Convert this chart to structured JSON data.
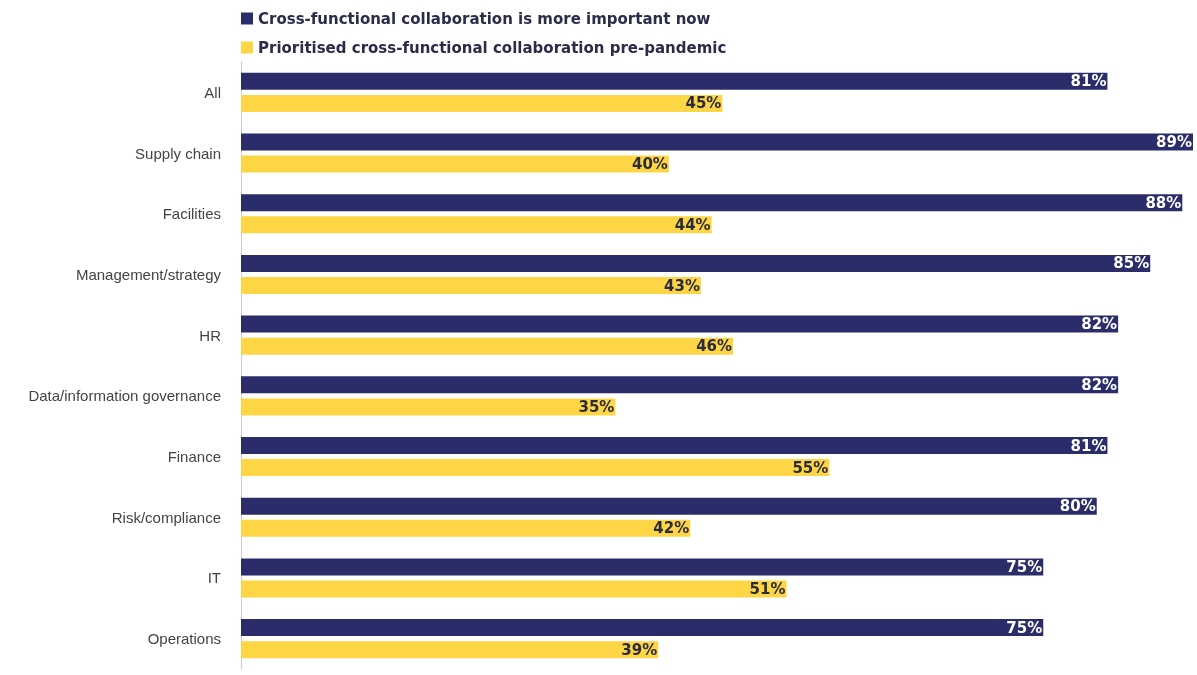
{
  "chart_data": {
    "type": "bar",
    "orientation": "horizontal",
    "legend": "top",
    "categories": [
      "All",
      "Supply chain",
      "Facilities",
      "Management/strategy",
      "HR",
      "Data/information governance",
      "Finance",
      "Risk/compliance",
      "IT",
      "Operations"
    ],
    "series": [
      {
        "name": "Cross-functional collaboration is more important now",
        "color": "#2b2c6a",
        "values": [
          81,
          89,
          88,
          85,
          82,
          82,
          81,
          80,
          75,
          75
        ],
        "value_labels": [
          "81%",
          "89%",
          "88%",
          "85%",
          "82%",
          "82%",
          "81%",
          "80%",
          "75%",
          "75%"
        ]
      },
      {
        "name": "Prioritised cross-functional collaboration pre-pandemic",
        "color": "#fdd545",
        "values": [
          45,
          40,
          44,
          43,
          46,
          35,
          55,
          42,
          51,
          39
        ],
        "value_labels": [
          "45%",
          "40%",
          "44%",
          "43%",
          "46%",
          "35%",
          "55%",
          "42%",
          "51%",
          "39%"
        ]
      }
    ]
  }
}
